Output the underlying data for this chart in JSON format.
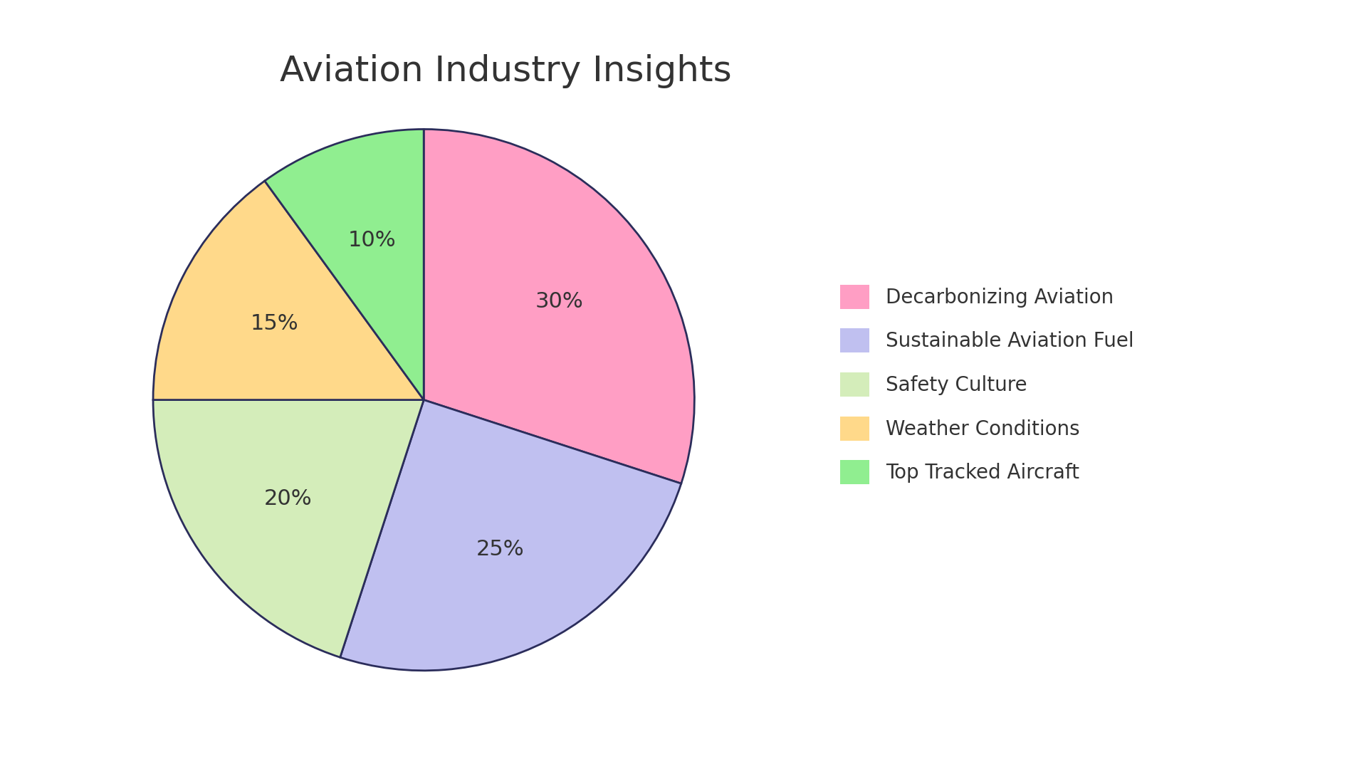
{
  "title": "Aviation Industry Insights",
  "slices": [
    {
      "label": "Decarbonizing Aviation",
      "value": 30,
      "color": "#FF9EC4"
    },
    {
      "label": "Sustainable Aviation Fuel",
      "value": 25,
      "color": "#C0C0F0"
    },
    {
      "label": "Safety Culture",
      "value": 20,
      "color": "#D4EDBA"
    },
    {
      "label": "Weather Conditions",
      "value": 15,
      "color": "#FFD98A"
    },
    {
      "label": "Top Tracked Aircraft",
      "value": 10,
      "color": "#90EE90"
    }
  ],
  "title_fontsize": 36,
  "label_fontsize": 22,
  "legend_fontsize": 20,
  "background_color": "#FFFFFF",
  "text_color": "#333333",
  "edge_color": "#2B2D5B",
  "edge_linewidth": 2.0,
  "startangle": 90
}
